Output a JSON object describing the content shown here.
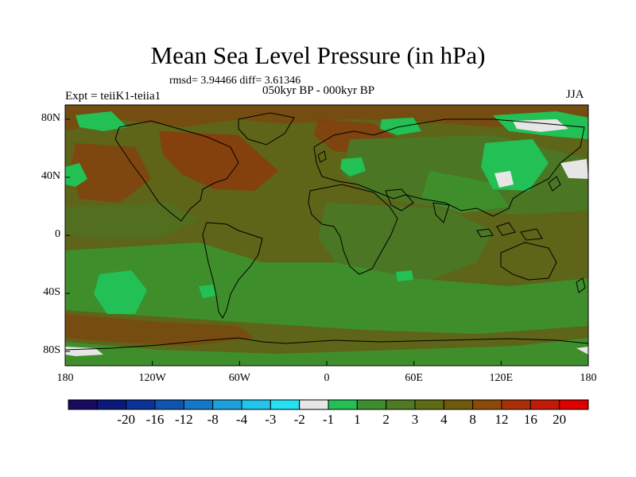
{
  "title": "Mean Sea Level Pressure (in hPa)",
  "stats": "rmsd= 3.94466 diff= 3.61346",
  "left_label": "Expt = teiiK1-teiia1",
  "center_label": "050kyr BP - 000kyr BP",
  "right_label": "JJA",
  "lat_ticks": [
    "80N",
    "40N",
    "0",
    "40S",
    "80S"
  ],
  "lon_ticks": [
    "180",
    "120W",
    "60W",
    "0",
    "60E",
    "120E",
    "180"
  ],
  "colorbar": {
    "colors": [
      "#1a0a5e",
      "#0b1a7a",
      "#0d3296",
      "#0f55b0",
      "#1478c8",
      "#1ea0dc",
      "#21c4ec",
      "#26e0f0",
      "#e6e6e6",
      "#22c055",
      "#3d8c2e",
      "#4d7a22",
      "#5e6a14",
      "#6e5a0c",
      "#8c4a0a",
      "#a83008",
      "#c21a06",
      "#dc0000"
    ],
    "labels": [
      "-20",
      "-16",
      "-12",
      "-8",
      "-4",
      "-3",
      "-2",
      "-1",
      "1",
      "2",
      "3",
      "4",
      "8",
      "12",
      "16",
      "20"
    ]
  },
  "map": {
    "colors": {
      "ocean_high": "#6e5212",
      "neutral": "#5e6418",
      "mid": "#4b7624",
      "low": "#3f8e2c",
      "very_low": "#22c055",
      "peak": "#8b3a0c",
      "near_zero": "#e6e6e6"
    }
  }
}
